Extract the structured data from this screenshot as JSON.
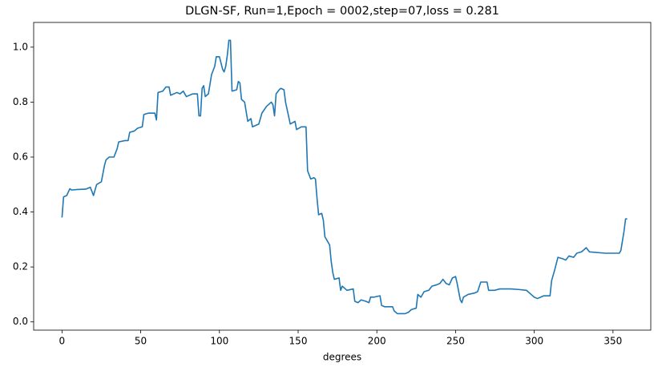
{
  "chart_data": {
    "type": "line",
    "title": "DLGN-SF, Run=1,Epoch = 0002,step=07,loss = 0.281",
    "xlabel": "degrees",
    "color": "#1f77b4",
    "x": [
      0,
      1,
      3,
      5,
      6,
      10,
      15,
      18,
      20,
      22,
      25,
      27,
      28,
      30,
      33,
      35,
      36,
      40,
      42,
      43,
      46,
      48,
      51,
      52,
      55,
      59,
      60,
      61,
      64,
      66,
      68,
      69,
      73,
      75,
      77,
      79,
      83,
      86,
      87,
      88,
      89,
      90,
      91,
      93,
      95,
      97,
      98,
      100,
      102,
      103,
      104,
      105,
      106,
      107,
      108,
      111,
      112,
      113,
      114,
      116,
      118,
      120,
      121,
      125,
      127,
      130,
      133,
      134,
      135,
      136,
      138,
      139,
      141,
      142,
      145,
      148,
      149,
      152,
      155,
      156,
      158,
      160,
      161,
      162,
      163,
      165,
      166,
      167,
      168,
      170,
      171,
      172,
      173,
      176,
      177,
      178,
      180,
      181,
      185,
      186,
      188,
      190,
      193,
      195,
      196,
      198,
      202,
      203,
      205,
      210,
      211,
      213,
      218,
      220,
      222,
      225,
      226,
      228,
      230,
      233,
      235,
      238,
      240,
      242,
      244,
      246,
      248,
      250,
      251,
      253,
      254,
      255,
      258,
      262,
      264,
      266,
      270,
      271,
      275,
      278,
      285,
      290,
      295,
      298,
      300,
      302,
      304,
      306,
      310,
      311,
      313,
      315,
      318,
      320,
      322,
      325,
      327,
      330,
      332,
      333,
      335,
      345,
      354,
      355,
      357,
      358,
      359
    ],
    "values": [
      0.38,
      0.455,
      0.46,
      0.485,
      0.48,
      0.482,
      0.483,
      0.49,
      0.46,
      0.5,
      0.51,
      0.57,
      0.59,
      0.6,
      0.6,
      0.63,
      0.655,
      0.66,
      0.66,
      0.69,
      0.695,
      0.705,
      0.71,
      0.755,
      0.76,
      0.76,
      0.735,
      0.835,
      0.84,
      0.855,
      0.855,
      0.825,
      0.835,
      0.83,
      0.84,
      0.82,
      0.83,
      0.83,
      0.75,
      0.75,
      0.85,
      0.86,
      0.82,
      0.83,
      0.9,
      0.93,
      0.965,
      0.965,
      0.92,
      0.91,
      0.93,
      0.97,
      1.025,
      1.025,
      0.84,
      0.845,
      0.875,
      0.87,
      0.81,
      0.8,
      0.73,
      0.74,
      0.71,
      0.72,
      0.76,
      0.785,
      0.8,
      0.79,
      0.75,
      0.83,
      0.845,
      0.85,
      0.845,
      0.8,
      0.72,
      0.73,
      0.7,
      0.71,
      0.71,
      0.55,
      0.52,
      0.525,
      0.52,
      0.45,
      0.39,
      0.395,
      0.37,
      0.31,
      0.3,
      0.28,
      0.22,
      0.18,
      0.155,
      0.16,
      0.115,
      0.13,
      0.12,
      0.115,
      0.12,
      0.075,
      0.07,
      0.08,
      0.075,
      0.07,
      0.09,
      0.09,
      0.095,
      0.06,
      0.055,
      0.055,
      0.04,
      0.03,
      0.03,
      0.035,
      0.045,
      0.05,
      0.1,
      0.09,
      0.11,
      0.115,
      0.13,
      0.135,
      0.14,
      0.155,
      0.14,
      0.135,
      0.16,
      0.165,
      0.14,
      0.08,
      0.07,
      0.09,
      0.1,
      0.105,
      0.11,
      0.145,
      0.145,
      0.115,
      0.115,
      0.12,
      0.12,
      0.118,
      0.115,
      0.1,
      0.09,
      0.085,
      0.09,
      0.095,
      0.095,
      0.15,
      0.19,
      0.235,
      0.23,
      0.225,
      0.24,
      0.235,
      0.25,
      0.255,
      0.265,
      0.27,
      0.255,
      0.25,
      0.25,
      0.26,
      0.33,
      0.375,
      0.375
    ],
    "xlim": [
      -18,
      374
    ],
    "ylim": [
      -0.03,
      1.09
    ],
    "xticks": [
      0,
      50,
      100,
      150,
      200,
      250,
      300,
      350
    ],
    "yticks": [
      {
        "value": 0,
        "label": "0.0"
      },
      {
        "value": 0.2,
        "label": "0.2"
      },
      {
        "value": 0.4,
        "label": "0.4"
      },
      {
        "value": 0.6,
        "label": "0.6"
      },
      {
        "value": 0.8,
        "label": "0.8"
      },
      {
        "value": 1,
        "label": "1.0"
      }
    ]
  }
}
